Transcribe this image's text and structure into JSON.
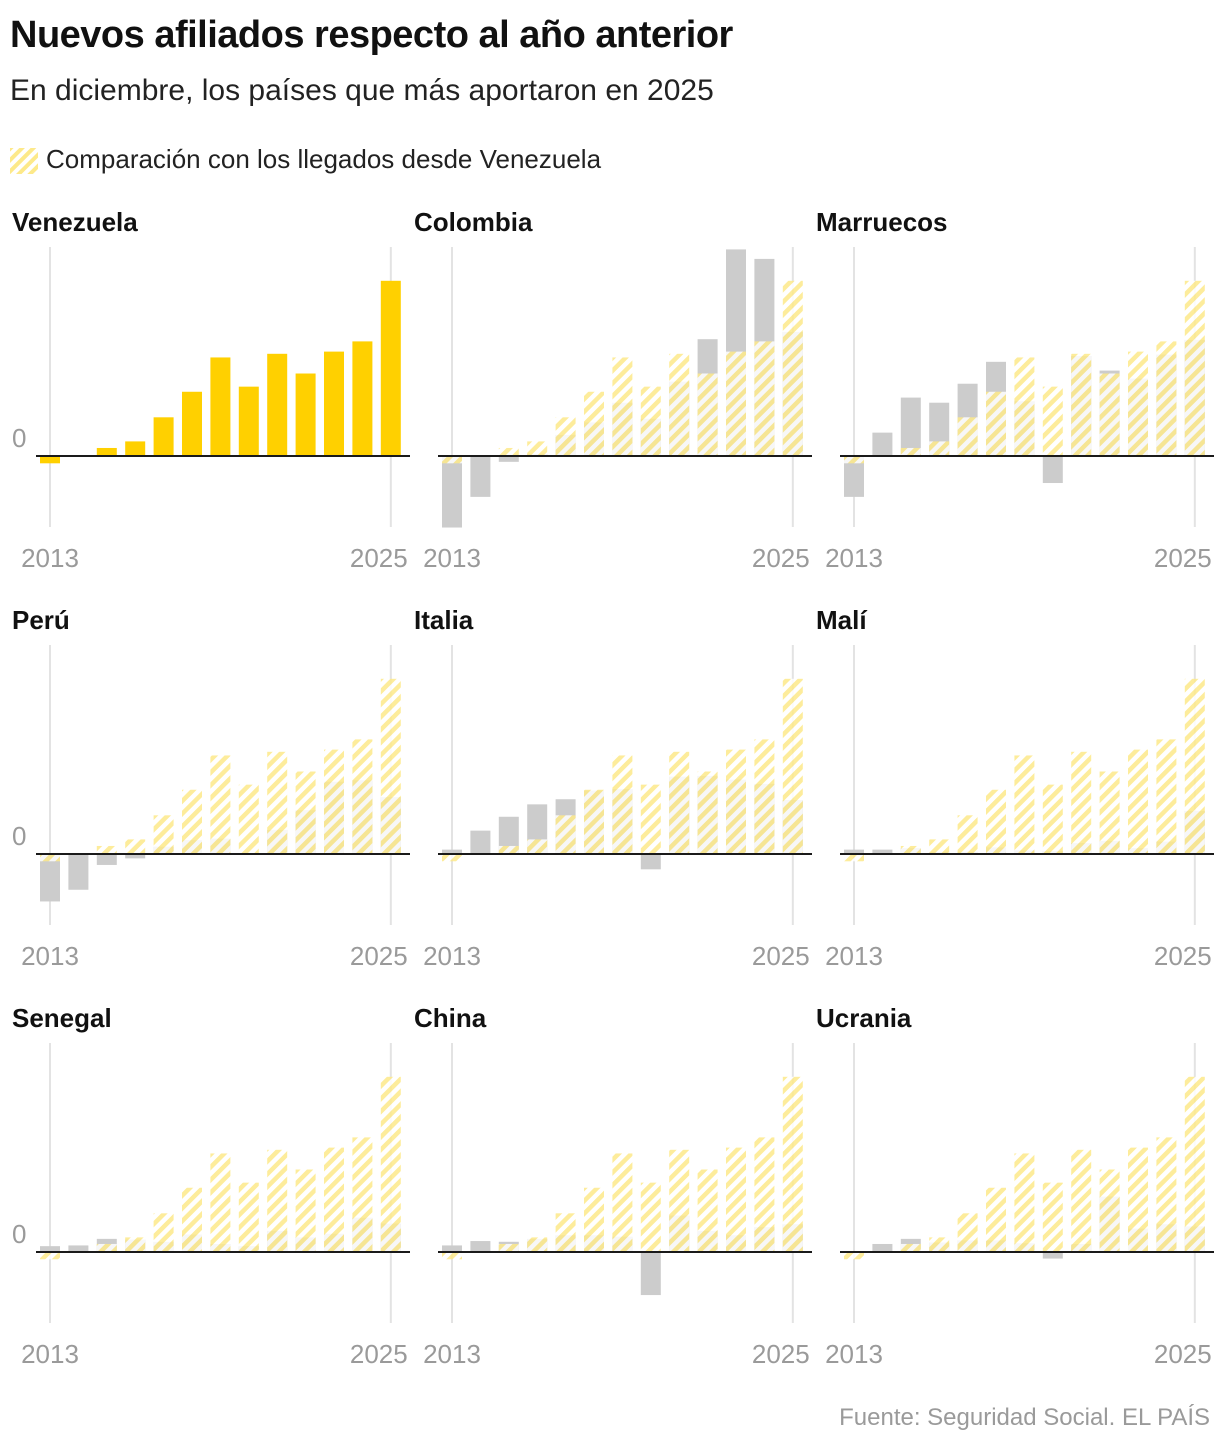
{
  "title": "Nuevos afiliados respecto al año anterior",
  "subtitle": "En diciembre, los países que más aportaron en 2025",
  "legend": {
    "label": "Comparación con los llegados desde Venezuela"
  },
  "source": "Fuente: Seguridad Social. EL PAÍS",
  "colors": {
    "highlight": "#ffd000",
    "other": "#cccccc",
    "hatch": "#fde98a",
    "axis": "#1a1a1a",
    "gridline": "#e3e3e3",
    "tick": "#9a9a9a"
  },
  "chart_data": [
    {
      "type": "bar",
      "title": "Venezuela",
      "highlight": true,
      "x": [
        2013,
        2014,
        2015,
        2016,
        2017,
        2018,
        2019,
        2020,
        2021,
        2022,
        2023,
        2024,
        2025
      ],
      "values": [
        -1.0,
        0,
        1.1,
        2.0,
        5.3,
        8.8,
        13.5,
        9.5,
        14.0,
        11.3,
        14.3,
        15.7,
        24.0
      ],
      "ylim": [
        -10,
        28
      ],
      "zero_label": "0",
      "x_tick_labels": [
        "2013",
        "2025"
      ]
    },
    {
      "type": "bar",
      "title": "Colombia",
      "x": [
        2013,
        2014,
        2015,
        2016,
        2017,
        2018,
        2019,
        2020,
        2021,
        2022,
        2023,
        2024,
        2025
      ],
      "values": [
        -9.8,
        -5.6,
        -0.8,
        0.3,
        2.9,
        4.6,
        7.3,
        5.1,
        10.2,
        16.0,
        28.3,
        27.0,
        17.0
      ],
      "comparison": [
        -1.0,
        0,
        1.1,
        2.0,
        5.3,
        8.8,
        13.5,
        9.5,
        14.0,
        11.3,
        14.3,
        15.7,
        24.0
      ],
      "ylim": [
        -10,
        28
      ],
      "zero_label": "",
      "x_tick_labels": [
        "2013",
        "2025"
      ]
    },
    {
      "type": "bar",
      "title": "Marruecos",
      "x": [
        2013,
        2014,
        2015,
        2016,
        2017,
        2018,
        2019,
        2020,
        2021,
        2022,
        2023,
        2024,
        2025
      ],
      "values": [
        -5.6,
        3.2,
        8.0,
        7.3,
        9.9,
        12.9,
        7.5,
        -3.7,
        13.7,
        11.7,
        10.6,
        13.9,
        15.9
      ],
      "comparison": [
        -1.0,
        0,
        1.1,
        2.0,
        5.3,
        8.8,
        13.5,
        9.5,
        14.0,
        11.3,
        14.3,
        15.7,
        24.0
      ],
      "ylim": [
        -10,
        28
      ],
      "zero_label": "",
      "x_tick_labels": [
        "2013",
        "2025"
      ]
    },
    {
      "type": "bar",
      "title": "Perú",
      "x": [
        2013,
        2014,
        2015,
        2016,
        2017,
        2018,
        2019,
        2020,
        2021,
        2022,
        2023,
        2024,
        2025
      ],
      "values": [
        -6.5,
        -4.9,
        -1.5,
        -0.6,
        1.0,
        1.9,
        2.1,
        0,
        3.3,
        6.0,
        9.9,
        10.1,
        7.8
      ],
      "comparison": [
        -1.0,
        0,
        1.1,
        2.0,
        5.3,
        8.8,
        13.5,
        9.5,
        14.0,
        11.3,
        14.3,
        15.7,
        24.0
      ],
      "ylim": [
        -10,
        28
      ],
      "zero_label": "0",
      "x_tick_labels": [
        "2013",
        "2025"
      ]
    },
    {
      "type": "bar",
      "title": "Italia",
      "x": [
        2013,
        2014,
        2015,
        2016,
        2017,
        2018,
        2019,
        2020,
        2021,
        2022,
        2023,
        2024,
        2025
      ],
      "values": [
        0.6,
        3.2,
        5.1,
        6.8,
        7.5,
        8.7,
        8.9,
        -2.1,
        10.6,
        10.7,
        10.2,
        9.6,
        7.4
      ],
      "comparison": [
        -1.0,
        0,
        1.1,
        2.0,
        5.3,
        8.8,
        13.5,
        9.5,
        14.0,
        11.3,
        14.3,
        15.7,
        24.0
      ],
      "ylim": [
        -10,
        28
      ],
      "zero_label": "",
      "x_tick_labels": [
        "2013",
        "2025"
      ]
    },
    {
      "type": "bar",
      "title": "Malí",
      "x": [
        2013,
        2014,
        2015,
        2016,
        2017,
        2018,
        2019,
        2020,
        2021,
        2022,
        2023,
        2024,
        2025
      ],
      "values": [
        0.6,
        0.6,
        0.8,
        0.3,
        0.3,
        0.9,
        0.5,
        0.4,
        1.5,
        1.8,
        0.8,
        1.7,
        5.9
      ],
      "comparison": [
        -1.0,
        0,
        1.1,
        2.0,
        5.3,
        8.8,
        13.5,
        9.5,
        14.0,
        11.3,
        14.3,
        15.7,
        24.0
      ],
      "ylim": [
        -10,
        28
      ],
      "zero_label": "",
      "x_tick_labels": [
        "2013",
        "2025"
      ]
    },
    {
      "type": "bar",
      "title": "Senegal",
      "x": [
        2013,
        2014,
        2015,
        2016,
        2017,
        2018,
        2019,
        2020,
        2021,
        2022,
        2023,
        2024,
        2025
      ],
      "values": [
        0.8,
        0.9,
        1.8,
        1.7,
        1.4,
        2.4,
        1.1,
        0.8,
        2.9,
        2.0,
        2.5,
        4.7,
        3.9
      ],
      "comparison": [
        -1.0,
        0,
        1.1,
        2.0,
        5.3,
        8.8,
        13.5,
        9.5,
        14.0,
        11.3,
        14.3,
        15.7,
        24.0
      ],
      "ylim": [
        -10,
        28
      ],
      "zero_label": "0",
      "x_tick_labels": [
        "2013",
        "2025"
      ]
    },
    {
      "type": "bar",
      "title": "China",
      "x": [
        2013,
        2014,
        2015,
        2016,
        2017,
        2018,
        2019,
        2020,
        2021,
        2022,
        2023,
        2024,
        2025
      ],
      "values": [
        0.9,
        1.5,
        1.4,
        1.8,
        2.3,
        2.3,
        2.1,
        -5.9,
        5.0,
        2.9,
        2.3,
        3.4,
        3.8
      ],
      "comparison": [
        -1.0,
        0,
        1.1,
        2.0,
        5.3,
        8.8,
        13.5,
        9.5,
        14.0,
        11.3,
        14.3,
        15.7,
        24.0
      ],
      "ylim": [
        -10,
        28
      ],
      "zero_label": "",
      "x_tick_labels": [
        "2013",
        "2025"
      ]
    },
    {
      "type": "bar",
      "title": "Ucrania",
      "x": [
        2013,
        2014,
        2015,
        2016,
        2017,
        2018,
        2019,
        2020,
        2021,
        2022,
        2023,
        2024,
        2025
      ],
      "values": [
        0,
        1.1,
        1.8,
        1.3,
        1.6,
        1.6,
        1.2,
        -0.9,
        1.1,
        7.6,
        3.2,
        3.8,
        3.5
      ],
      "comparison": [
        -1.0,
        0,
        1.1,
        2.0,
        5.3,
        8.8,
        13.5,
        9.5,
        14.0,
        11.3,
        14.3,
        15.7,
        24.0
      ],
      "ylim": [
        -10,
        28
      ],
      "zero_label": "",
      "x_tick_labels": [
        "2013",
        "2025"
      ]
    }
  ]
}
